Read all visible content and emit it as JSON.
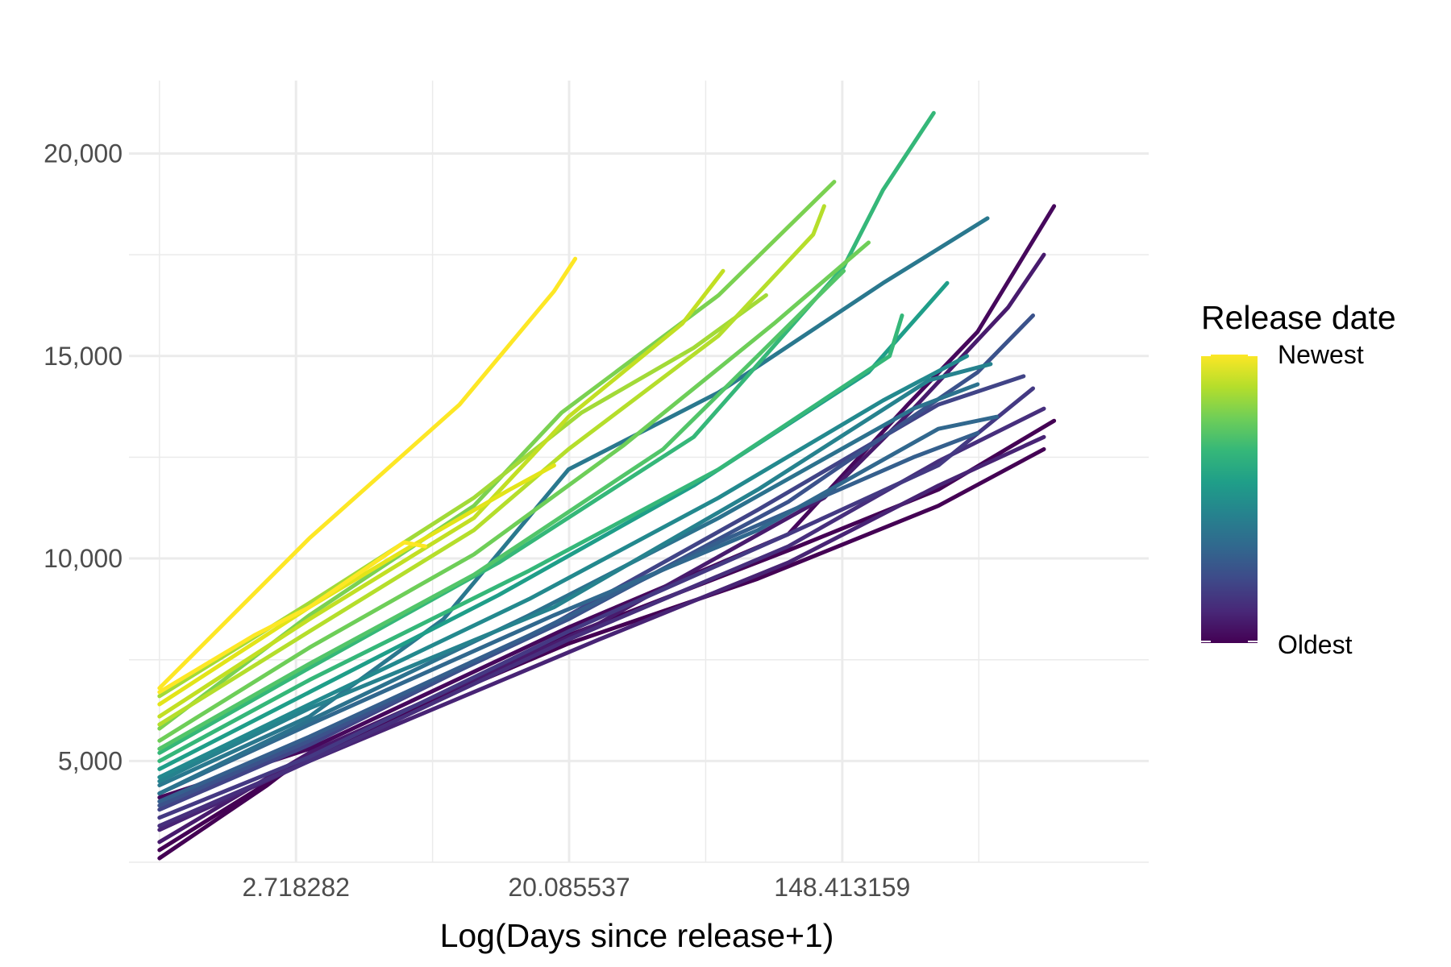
{
  "chart_data": {
    "type": "line",
    "title": "",
    "xlabel": "Log(Days since release+1)",
    "ylabel": "",
    "x_scale": "log",
    "x_tick_labels": [
      "2.718282",
      "20.085537",
      "148.413159"
    ],
    "x_tick_values": [
      2.718282,
      20.085537,
      148.413159
    ],
    "xlim": [
      0.8,
      1400
    ],
    "y_ticks": [
      5000,
      10000,
      15000,
      20000
    ],
    "y_tick_labels": [
      "5,000",
      "10,000",
      "15,000",
      "20,000"
    ],
    "ylim": [
      2500,
      21800
    ],
    "grid": true,
    "legend": {
      "title": "Release date",
      "position": "right",
      "type": "colorbar",
      "top_label": "Newest",
      "bottom_label": "Oldest",
      "colors": [
        "#440154",
        "#482878",
        "#3e4a89",
        "#31688e",
        "#26828e",
        "#1f9e89",
        "#35b779",
        "#6ece58",
        "#b5de2b",
        "#fde725"
      ]
    },
    "series": [
      {
        "color": "#fde725",
        "values": [
          [
            1,
            6800
          ],
          [
            3,
            10500
          ],
          [
            9,
            13800
          ],
          [
            18,
            16600
          ],
          [
            21,
            17400
          ]
        ]
      },
      {
        "color": "#fde725",
        "values": [
          [
            1,
            6700
          ],
          [
            2,
            8100
          ],
          [
            3,
            8800
          ],
          [
            6,
            10400
          ],
          [
            7,
            10300
          ]
        ]
      },
      {
        "color": "#e3e418",
        "values": [
          [
            1,
            6400
          ],
          [
            3,
            8800
          ],
          [
            6,
            10200
          ],
          [
            13,
            11700
          ],
          [
            18,
            12300
          ]
        ]
      },
      {
        "color": "#c2df23",
        "values": [
          [
            1,
            6100
          ],
          [
            3,
            8500
          ],
          [
            10,
            11000
          ],
          [
            20,
            13500
          ],
          [
            46,
            15800
          ],
          [
            62,
            17100
          ]
        ]
      },
      {
        "color": "#b5de2b",
        "values": [
          [
            1,
            5900
          ],
          [
            3,
            8200
          ],
          [
            10,
            10700
          ],
          [
            20,
            12700
          ],
          [
            60,
            15500
          ],
          [
            120,
            18000
          ],
          [
            130,
            18700
          ]
        ]
      },
      {
        "color": "#a2da37",
        "values": [
          [
            1,
            6600
          ],
          [
            3,
            8900
          ],
          [
            10,
            11500
          ],
          [
            22,
            13600
          ],
          [
            50,
            15200
          ],
          [
            85,
            16500
          ]
        ]
      },
      {
        "color": "#7ad151",
        "values": [
          [
            1,
            5800
          ],
          [
            3,
            8600
          ],
          [
            10,
            11300
          ],
          [
            19,
            13600
          ],
          [
            60,
            16500
          ],
          [
            140,
            19300
          ]
        ]
      },
      {
        "color": "#6ece58",
        "values": [
          [
            1,
            5500
          ],
          [
            3,
            7800
          ],
          [
            10,
            10100
          ],
          [
            30,
            12800
          ],
          [
            90,
            15800
          ],
          [
            180,
            17800
          ]
        ]
      },
      {
        "color": "#52c569",
        "values": [
          [
            1,
            5300
          ],
          [
            3,
            7400
          ],
          [
            10,
            9600
          ],
          [
            40,
            12700
          ],
          [
            150,
            17100
          ]
        ]
      },
      {
        "color": "#35b779",
        "values": [
          [
            1,
            5200
          ],
          [
            3,
            7300
          ],
          [
            12,
            9900
          ],
          [
            50,
            13000
          ],
          [
            150,
            17200
          ],
          [
            200,
            19100
          ],
          [
            290,
            21000
          ]
        ]
      },
      {
        "color": "#35b779",
        "values": [
          [
            1,
            5000
          ],
          [
            3,
            7000
          ],
          [
            15,
            9700
          ],
          [
            60,
            12200
          ],
          [
            210,
            15000
          ],
          [
            230,
            16000
          ]
        ]
      },
      {
        "color": "#1f9e89",
        "values": [
          [
            1,
            4800
          ],
          [
            3,
            6700
          ],
          [
            12,
            9100
          ],
          [
            50,
            11800
          ],
          [
            180,
            14600
          ],
          [
            320,
            16800
          ]
        ]
      },
      {
        "color": "#23898e",
        "values": [
          [
            1,
            4600
          ],
          [
            3,
            6400
          ],
          [
            15,
            9000
          ],
          [
            60,
            11500
          ],
          [
            200,
            13900
          ],
          [
            370,
            15000
          ]
        ]
      },
      {
        "color": "#26828e",
        "values": [
          [
            1,
            4500
          ],
          [
            3,
            6300
          ],
          [
            18,
            8800
          ],
          [
            80,
            11700
          ],
          [
            280,
            14400
          ],
          [
            440,
            14800
          ]
        ]
      },
      {
        "color": "#2a788e",
        "values": [
          [
            1,
            4400
          ],
          [
            3,
            6100
          ],
          [
            8,
            8500
          ],
          [
            20,
            12200
          ],
          [
            60,
            14100
          ],
          [
            200,
            16800
          ],
          [
            430,
            18400
          ]
        ]
      },
      {
        "color": "#2c728e",
        "values": [
          [
            1,
            4200
          ],
          [
            3,
            6000
          ],
          [
            15,
            8600
          ],
          [
            60,
            11000
          ],
          [
            250,
            13700
          ],
          [
            400,
            14300
          ]
        ]
      },
      {
        "color": "#31688e",
        "values": [
          [
            1,
            4200
          ],
          [
            3,
            5900
          ],
          [
            18,
            8600
          ],
          [
            80,
            10700
          ],
          [
            300,
            13200
          ],
          [
            460,
            13500
          ]
        ]
      },
      {
        "color": "#355f8d",
        "values": [
          [
            1,
            4000
          ],
          [
            3,
            5600
          ],
          [
            15,
            8100
          ],
          [
            60,
            10400
          ],
          [
            250,
            12500
          ],
          [
            400,
            13100
          ]
        ]
      },
      {
        "color": "#3b528b",
        "values": [
          [
            1,
            3900
          ],
          [
            3,
            5500
          ],
          [
            20,
            8500
          ],
          [
            100,
            11400
          ],
          [
            400,
            14600
          ],
          [
            600,
            16000
          ]
        ]
      },
      {
        "color": "#414487",
        "values": [
          [
            1,
            3800
          ],
          [
            3,
            5400
          ],
          [
            18,
            8400
          ],
          [
            80,
            11200
          ],
          [
            300,
            13800
          ],
          [
            560,
            14500
          ]
        ]
      },
      {
        "color": "#443983",
        "values": [
          [
            1,
            3600
          ],
          [
            3,
            5100
          ],
          [
            20,
            8200
          ],
          [
            100,
            10600
          ],
          [
            300,
            12300
          ],
          [
            600,
            14200
          ]
        ]
      },
      {
        "color": "#472f7d",
        "values": [
          [
            1,
            3400
          ],
          [
            3,
            5000
          ],
          [
            20,
            8000
          ],
          [
            100,
            10300
          ],
          [
            300,
            12400
          ],
          [
            650,
            13700
          ]
        ]
      },
      {
        "color": "#482475",
        "values": [
          [
            1,
            3300
          ],
          [
            3,
            5000
          ],
          [
            25,
            8000
          ],
          [
            100,
            9900
          ],
          [
            300,
            11800
          ],
          [
            650,
            13000
          ]
        ]
      },
      {
        "color": "#481b6d",
        "values": [
          [
            1,
            3000
          ],
          [
            3,
            5200
          ],
          [
            25,
            8400
          ],
          [
            130,
            11500
          ],
          [
            250,
            13700
          ],
          [
            500,
            16200
          ],
          [
            650,
            17500
          ]
        ]
      },
      {
        "color": "#46085c",
        "values": [
          [
            1,
            4100
          ],
          [
            3,
            5300
          ],
          [
            20,
            8300
          ],
          [
            100,
            10600
          ],
          [
            240,
            13800
          ],
          [
            400,
            15600
          ],
          [
            700,
            18700
          ]
        ]
      },
      {
        "color": "#440154",
        "values": [
          [
            1,
            2800
          ],
          [
            3,
            5100
          ],
          [
            20,
            8100
          ],
          [
            100,
            10200
          ],
          [
            300,
            11700
          ],
          [
            700,
            13400
          ]
        ]
      },
      {
        "color": "#440154",
        "values": [
          [
            1,
            2600
          ],
          [
            2.2,
            4400
          ],
          [
            3,
            5200
          ],
          [
            20,
            7900
          ],
          [
            80,
            9500
          ],
          [
            300,
            11300
          ],
          [
            650,
            12700
          ]
        ]
      }
    ]
  }
}
